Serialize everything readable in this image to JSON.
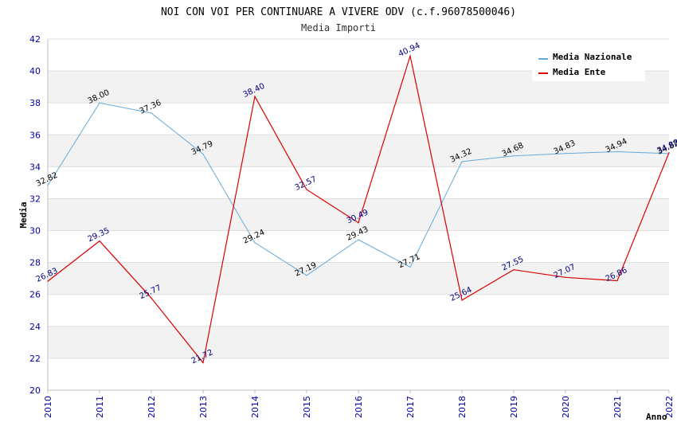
{
  "chart_data": {
    "type": "line",
    "title": "NOI CON VOI PER CONTINUARE A VIVERE ODV (c.f.96078500046)",
    "subtitle": "Media Importi",
    "xlabel": "Anno",
    "ylabel": "Media",
    "x": [
      "2010",
      "2011",
      "2012",
      "2013",
      "2014",
      "2015",
      "2016",
      "2017",
      "2018",
      "2019",
      "2020",
      "2021",
      "2022"
    ],
    "ylim": [
      20,
      42
    ],
    "yticks": [
      20,
      22,
      24,
      26,
      28,
      30,
      32,
      34,
      36,
      38,
      40,
      42
    ],
    "grid": true,
    "legend_position": "top-right",
    "series": [
      {
        "name": "Media Nazionale",
        "color": "#66aadd",
        "values": [
          32.82,
          38.0,
          37.36,
          34.79,
          29.24,
          27.19,
          29.43,
          27.71,
          34.32,
          34.68,
          34.83,
          34.94,
          34.82
        ],
        "labels": [
          "32.82",
          "38.00",
          "37.36",
          "34.79",
          "29.24",
          "27.19",
          "29.43",
          "27.71",
          "34.32",
          "34.68",
          "34.83",
          "34.94",
          "34.82"
        ]
      },
      {
        "name": "Media Ente",
        "color": "#dd0000",
        "values": [
          26.83,
          29.35,
          25.77,
          21.72,
          38.4,
          32.57,
          30.49,
          40.94,
          25.64,
          27.55,
          27.07,
          26.86,
          34.88
        ],
        "labels": [
          "26.83",
          "29.35",
          "25.77",
          "21.72",
          "38.40",
          "32.57",
          "30.49",
          "40.94",
          "25.64",
          "27.55",
          "27.07",
          "26.86",
          "34.88"
        ]
      }
    ]
  }
}
